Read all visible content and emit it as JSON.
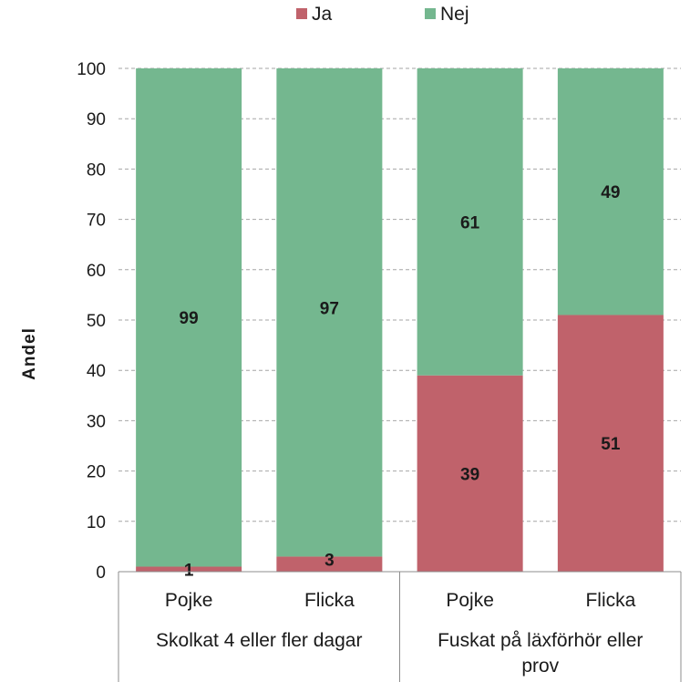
{
  "chart_data": {
    "type": "bar",
    "stacked": true,
    "ylabel": "Andel",
    "ylim": [
      0,
      100
    ],
    "yticks": [
      0,
      10,
      20,
      30,
      40,
      50,
      60,
      70,
      80,
      90,
      100
    ],
    "grid": true,
    "legend_position": "top",
    "categories": [
      "Pojke",
      "Flicka",
      "Pojke",
      "Flicka"
    ],
    "groups": [
      {
        "label_lines": [
          "Skolkat 4 eller fler dagar"
        ],
        "span": [
          0,
          1
        ]
      },
      {
        "label_lines": [
          "Fuskat på läxförhör eller",
          "prov"
        ],
        "span": [
          2,
          3
        ]
      }
    ],
    "series": [
      {
        "name": "Ja",
        "color": "#c0626b",
        "values": [
          1,
          3,
          39,
          51
        ]
      },
      {
        "name": "Nej",
        "color": "#74b78f",
        "values": [
          99,
          97,
          61,
          49
        ]
      }
    ]
  }
}
